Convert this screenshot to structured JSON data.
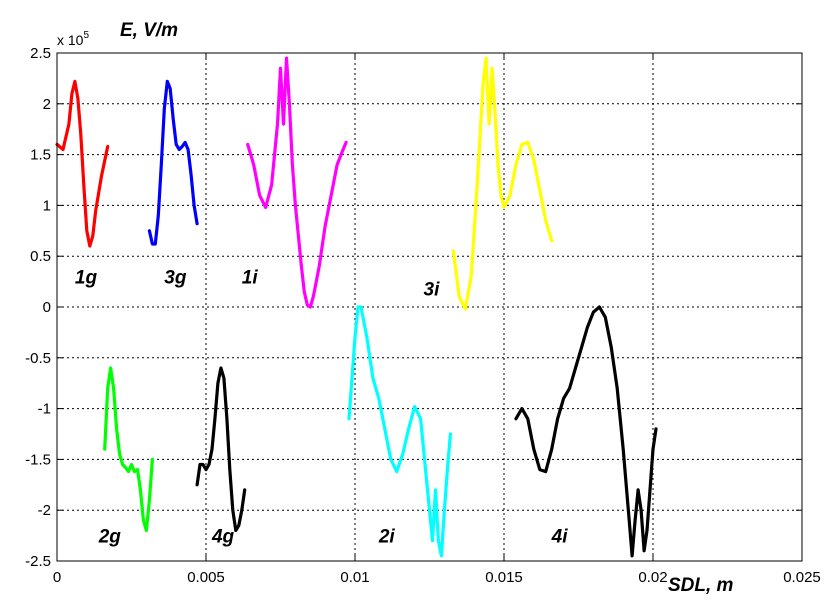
{
  "chart_data": {
    "type": "line",
    "xlabel": "SDL, m",
    "ylabel": "E, V/m",
    "y_multiplier_label": "x 10",
    "y_multiplier_exponent": "5",
    "xlim": [
      0,
      0.025
    ],
    "ylim": [
      -2.5,
      2.5
    ],
    "grid": true,
    "x_ticks": [
      {
        "value": 0,
        "label": "0"
      },
      {
        "value": 0.005,
        "label": "0.005"
      },
      {
        "value": 0.01,
        "label": "0.01"
      },
      {
        "value": 0.015,
        "label": "0.015"
      },
      {
        "value": 0.02,
        "label": "0.02"
      },
      {
        "value": 0.025,
        "label": "0.025"
      }
    ],
    "y_ticks": [
      {
        "value": 2.5,
        "label": "2.5"
      },
      {
        "value": 2,
        "label": "2"
      },
      {
        "value": 1.5,
        "label": "1.5"
      },
      {
        "value": 1,
        "label": "1"
      },
      {
        "value": 0.5,
        "label": "0.5"
      },
      {
        "value": 0,
        "label": "0"
      },
      {
        "value": -0.5,
        "label": "-0.5"
      },
      {
        "value": -1,
        "label": "-1"
      },
      {
        "value": -1.5,
        "label": "-1.5"
      },
      {
        "value": -2,
        "label": "-2"
      },
      {
        "value": -2.5,
        "label": "-2.5"
      }
    ],
    "series": [
      {
        "name": "1g",
        "color": "#ff0000",
        "label_at": [
          0.0006,
          0.3
        ],
        "x": [
          0.0,
          0.0002,
          0.0004,
          0.0005,
          0.0006,
          0.0007,
          0.0008,
          0.0009,
          0.001,
          0.0011,
          0.0012,
          0.0013,
          0.0015,
          0.0017
        ],
        "y": [
          1.6,
          1.55,
          1.8,
          2.1,
          2.22,
          2.05,
          1.7,
          1.2,
          0.75,
          0.6,
          0.7,
          0.95,
          1.3,
          1.58
        ]
      },
      {
        "name": "3g",
        "color": "#0000ff",
        "label_at": [
          0.0036,
          0.3
        ],
        "x": [
          0.0031,
          0.0032,
          0.0033,
          0.0034,
          0.0035,
          0.0036,
          0.0037,
          0.0038,
          0.0039,
          0.004,
          0.0041,
          0.0042,
          0.0043,
          0.0044,
          0.0045,
          0.0046,
          0.0047
        ],
        "y": [
          0.75,
          0.62,
          0.62,
          0.9,
          1.4,
          1.95,
          2.22,
          2.15,
          1.85,
          1.6,
          1.55,
          1.58,
          1.62,
          1.55,
          1.3,
          1.0,
          0.82
        ]
      },
      {
        "name": "1i",
        "color": "#ff00ff",
        "label_at": [
          0.0062,
          0.3
        ],
        "x": [
          0.0064,
          0.0066,
          0.0068,
          0.007,
          0.0072,
          0.0074,
          0.0075,
          0.0076,
          0.0077,
          0.0078,
          0.0079,
          0.008,
          0.0081,
          0.0082,
          0.0083,
          0.0084,
          0.0085,
          0.0086,
          0.0088,
          0.009,
          0.0092,
          0.0094,
          0.0096,
          0.0097
        ],
        "y": [
          1.6,
          1.4,
          1.1,
          0.98,
          1.2,
          1.8,
          2.35,
          1.8,
          2.45,
          2.0,
          1.4,
          1.0,
          0.7,
          0.4,
          0.15,
          0.02,
          0.0,
          0.1,
          0.4,
          0.8,
          1.1,
          1.4,
          1.55,
          1.62
        ]
      },
      {
        "name": "3i",
        "color": "#ffff00",
        "label_at": [
          0.0123,
          0.18
        ],
        "x": [
          0.0133,
          0.0135,
          0.0137,
          0.0139,
          0.0141,
          0.0143,
          0.0144,
          0.0145,
          0.0146,
          0.0147,
          0.0148,
          0.0149,
          0.015,
          0.0152,
          0.0154,
          0.0156,
          0.0158,
          0.016,
          0.0162,
          0.0164,
          0.0166
        ],
        "y": [
          0.55,
          0.1,
          -0.02,
          0.3,
          1.2,
          2.2,
          2.45,
          1.8,
          2.35,
          1.9,
          1.4,
          1.1,
          0.98,
          1.1,
          1.4,
          1.6,
          1.62,
          1.45,
          1.15,
          0.85,
          0.65
        ]
      },
      {
        "name": "2g",
        "color": "#00ff00",
        "label_at": [
          0.0014,
          -2.25
        ],
        "x": [
          0.0016,
          0.0017,
          0.0018,
          0.0019,
          0.002,
          0.0021,
          0.0022,
          0.0023,
          0.0024,
          0.0025,
          0.0026,
          0.0027,
          0.0028,
          0.0029,
          0.003,
          0.0031,
          0.0032
        ],
        "y": [
          -1.4,
          -0.8,
          -0.6,
          -0.8,
          -1.2,
          -1.45,
          -1.55,
          -1.58,
          -1.62,
          -1.55,
          -1.62,
          -1.6,
          -1.8,
          -2.1,
          -2.2,
          -1.9,
          -1.5
        ]
      },
      {
        "name": "4g",
        "color": "#000000",
        "label_at": [
          0.0052,
          -2.25
        ],
        "x": [
          0.0047,
          0.0048,
          0.0049,
          0.005,
          0.0051,
          0.0052,
          0.0053,
          0.0054,
          0.0055,
          0.0056,
          0.0057,
          0.0058,
          0.0059,
          0.006,
          0.0061,
          0.0062,
          0.0063
        ],
        "y": [
          -1.75,
          -1.55,
          -1.55,
          -1.6,
          -1.55,
          -1.4,
          -1.1,
          -0.75,
          -0.6,
          -0.7,
          -1.1,
          -1.6,
          -2.0,
          -2.2,
          -2.15,
          -2.0,
          -1.8
        ]
      },
      {
        "name": "2i",
        "color": "#00ffff",
        "label_at": [
          0.0108,
          -2.25
        ],
        "x": [
          0.0098,
          0.01,
          0.0101,
          0.0102,
          0.0104,
          0.0106,
          0.0108,
          0.011,
          0.0112,
          0.0114,
          0.0116,
          0.0118,
          0.012,
          0.0122,
          0.0124,
          0.0126,
          0.0127,
          0.0128,
          0.0129,
          0.013,
          0.0131,
          0.0132
        ],
        "y": [
          -1.1,
          -0.3,
          0.0,
          0.0,
          -0.3,
          -0.7,
          -0.9,
          -1.2,
          -1.5,
          -1.62,
          -1.45,
          -1.2,
          -0.98,
          -1.1,
          -1.7,
          -2.3,
          -1.8,
          -2.3,
          -2.45,
          -2.0,
          -1.6,
          -1.25
        ]
      },
      {
        "name": "4i",
        "color": "#000000",
        "label_at": [
          0.0166,
          -2.25
        ],
        "x": [
          0.0154,
          0.0156,
          0.0158,
          0.016,
          0.0162,
          0.0164,
          0.0166,
          0.0168,
          0.017,
          0.0172,
          0.0174,
          0.0176,
          0.0178,
          0.018,
          0.0182,
          0.0184,
          0.0186,
          0.0188,
          0.019,
          0.0192,
          0.0193,
          0.0194,
          0.0195,
          0.0196,
          0.0197,
          0.0198,
          0.0199,
          0.02,
          0.0201
        ],
        "y": [
          -1.1,
          -1.0,
          -1.1,
          -1.4,
          -1.6,
          -1.62,
          -1.4,
          -1.1,
          -0.9,
          -0.8,
          -0.6,
          -0.4,
          -0.2,
          -0.05,
          0.0,
          -0.1,
          -0.4,
          -0.8,
          -1.4,
          -2.1,
          -2.45,
          -2.1,
          -1.8,
          -2.0,
          -2.4,
          -2.2,
          -1.8,
          -1.4,
          -1.2
        ]
      }
    ]
  }
}
